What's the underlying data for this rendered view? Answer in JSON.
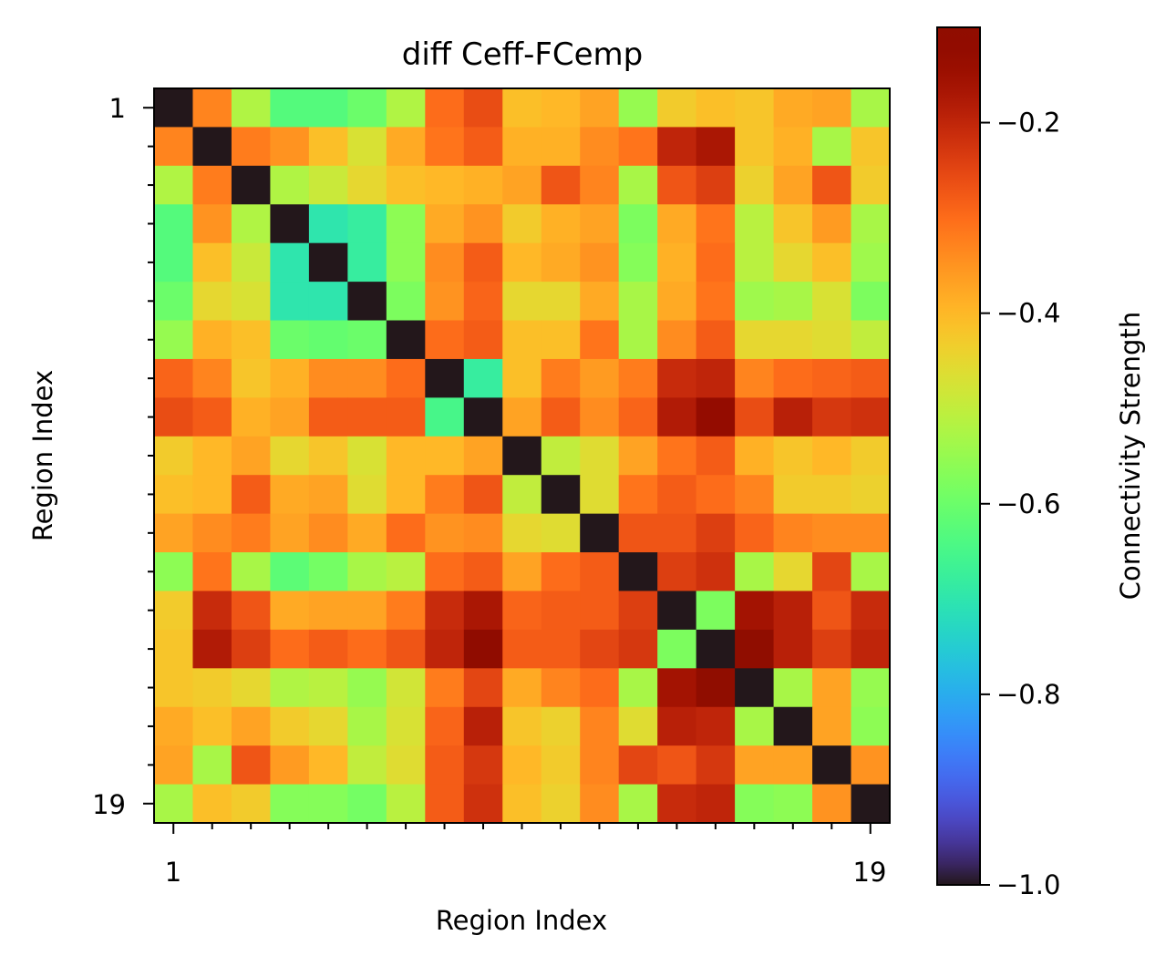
{
  "chart_data": {
    "type": "heatmap",
    "title": "diff Ceff-FCemp",
    "xlabel": "Region Index",
    "ylabel": "Region Index",
    "x_tick_labels": [
      "1",
      "19"
    ],
    "y_tick_labels": [
      "1",
      "19"
    ],
    "colorbar": {
      "label": "Connectivity Strength",
      "colormap": "turbo",
      "range": [
        -1.0,
        -0.1
      ],
      "ticks": [
        -0.2,
        -0.4,
        -0.6,
        -0.8,
        -1.0
      ],
      "tick_labels": [
        "−0.2",
        "−0.4",
        "−0.6",
        "−0.8",
        "−1.0"
      ]
    },
    "matrix": [
      [
        -1.0,
        -0.33,
        -0.52,
        -0.63,
        -0.63,
        -0.6,
        -0.52,
        -0.3,
        -0.26,
        -0.41,
        -0.4,
        -0.37,
        -0.55,
        -0.43,
        -0.41,
        -0.42,
        -0.38,
        -0.37,
        -0.53
      ],
      [
        -0.33,
        -1.0,
        -0.32,
        -0.35,
        -0.41,
        -0.47,
        -0.38,
        -0.31,
        -0.28,
        -0.39,
        -0.39,
        -0.34,
        -0.31,
        -0.2,
        -0.17,
        -0.42,
        -0.39,
        -0.53,
        -0.42
      ],
      [
        -0.52,
        -0.32,
        -1.0,
        -0.52,
        -0.49,
        -0.45,
        -0.41,
        -0.4,
        -0.39,
        -0.37,
        -0.27,
        -0.33,
        -0.53,
        -0.27,
        -0.24,
        -0.44,
        -0.37,
        -0.27,
        -0.43
      ],
      [
        -0.63,
        -0.35,
        -0.52,
        -1.0,
        -0.7,
        -0.68,
        -0.56,
        -0.38,
        -0.35,
        -0.43,
        -0.39,
        -0.37,
        -0.58,
        -0.38,
        -0.31,
        -0.51,
        -0.42,
        -0.36,
        -0.53
      ],
      [
        -0.63,
        -0.41,
        -0.49,
        -0.7,
        -1.0,
        -0.68,
        -0.56,
        -0.34,
        -0.28,
        -0.4,
        -0.38,
        -0.35,
        -0.57,
        -0.39,
        -0.3,
        -0.51,
        -0.45,
        -0.41,
        -0.54
      ],
      [
        -0.6,
        -0.45,
        -0.47,
        -0.7,
        -0.7,
        -1.0,
        -0.58,
        -0.35,
        -0.29,
        -0.45,
        -0.45,
        -0.38,
        -0.53,
        -0.38,
        -0.31,
        -0.54,
        -0.53,
        -0.47,
        -0.58
      ],
      [
        -0.55,
        -0.39,
        -0.41,
        -0.6,
        -0.61,
        -0.6,
        -1.0,
        -0.3,
        -0.28,
        -0.41,
        -0.41,
        -0.31,
        -0.53,
        -0.34,
        -0.28,
        -0.45,
        -0.45,
        -0.46,
        -0.5
      ],
      [
        -0.29,
        -0.33,
        -0.42,
        -0.39,
        -0.34,
        -0.34,
        -0.3,
        -1.0,
        -0.68,
        -0.41,
        -0.32,
        -0.36,
        -0.32,
        -0.21,
        -0.2,
        -0.33,
        -0.3,
        -0.29,
        -0.28
      ],
      [
        -0.26,
        -0.28,
        -0.39,
        -0.37,
        -0.28,
        -0.28,
        -0.28,
        -0.65,
        -1.0,
        -0.37,
        -0.28,
        -0.34,
        -0.29,
        -0.18,
        -0.13,
        -0.26,
        -0.19,
        -0.23,
        -0.22
      ],
      [
        -0.43,
        -0.4,
        -0.37,
        -0.45,
        -0.42,
        -0.47,
        -0.4,
        -0.4,
        -0.37,
        -1.0,
        -0.5,
        -0.46,
        -0.37,
        -0.31,
        -0.28,
        -0.39,
        -0.42,
        -0.4,
        -0.43
      ],
      [
        -0.41,
        -0.4,
        -0.28,
        -0.38,
        -0.37,
        -0.46,
        -0.4,
        -0.32,
        -0.27,
        -0.5,
        -1.0,
        -0.46,
        -0.31,
        -0.28,
        -0.3,
        -0.33,
        -0.43,
        -0.43,
        -0.44
      ],
      [
        -0.37,
        -0.34,
        -0.32,
        -0.37,
        -0.34,
        -0.38,
        -0.3,
        -0.35,
        -0.34,
        -0.45,
        -0.46,
        -1.0,
        -0.27,
        -0.27,
        -0.24,
        -0.29,
        -0.33,
        -0.34,
        -0.34
      ],
      [
        -0.56,
        -0.31,
        -0.53,
        -0.62,
        -0.59,
        -0.53,
        -0.51,
        -0.3,
        -0.28,
        -0.37,
        -0.3,
        -0.28,
        -1.0,
        -0.24,
        -0.22,
        -0.53,
        -0.45,
        -0.25,
        -0.53
      ],
      [
        -0.43,
        -0.21,
        -0.27,
        -0.38,
        -0.37,
        -0.37,
        -0.32,
        -0.21,
        -0.17,
        -0.29,
        -0.28,
        -0.28,
        -0.24,
        -1.0,
        -0.58,
        -0.16,
        -0.19,
        -0.27,
        -0.21
      ],
      [
        -0.42,
        -0.18,
        -0.24,
        -0.3,
        -0.28,
        -0.3,
        -0.27,
        -0.2,
        -0.11,
        -0.28,
        -0.28,
        -0.25,
        -0.23,
        -0.58,
        -1.0,
        -0.1,
        -0.19,
        -0.24,
        -0.2
      ],
      [
        -0.42,
        -0.43,
        -0.45,
        -0.52,
        -0.51,
        -0.55,
        -0.48,
        -0.32,
        -0.25,
        -0.38,
        -0.33,
        -0.3,
        -0.53,
        -0.16,
        -0.1,
        -1.0,
        -0.53,
        -0.37,
        -0.55
      ],
      [
        -0.38,
        -0.41,
        -0.37,
        -0.43,
        -0.45,
        -0.53,
        -0.47,
        -0.29,
        -0.19,
        -0.42,
        -0.44,
        -0.33,
        -0.46,
        -0.19,
        -0.2,
        -0.53,
        -1.0,
        -0.37,
        -0.56
      ],
      [
        -0.37,
        -0.53,
        -0.27,
        -0.36,
        -0.4,
        -0.5,
        -0.46,
        -0.28,
        -0.23,
        -0.4,
        -0.43,
        -0.33,
        -0.25,
        -0.27,
        -0.23,
        -0.37,
        -0.37,
        -1.0,
        -0.35
      ],
      [
        -0.53,
        -0.41,
        -0.43,
        -0.57,
        -0.57,
        -0.59,
        -0.51,
        -0.28,
        -0.22,
        -0.41,
        -0.44,
        -0.34,
        -0.53,
        -0.21,
        -0.2,
        -0.57,
        -0.56,
        -0.35,
        -1.0
      ]
    ]
  }
}
